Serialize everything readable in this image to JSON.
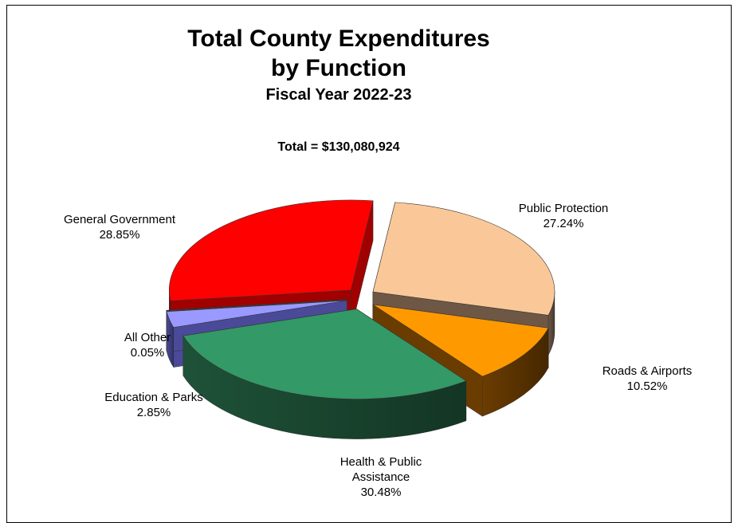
{
  "chart_data": {
    "type": "pie",
    "title": "Total County Expenditures",
    "title_line2": "by Function",
    "subtitle": "Fiscal Year 2022-23",
    "total_label": "Total = $130,080,924",
    "three_d": true,
    "exploded": true,
    "slices": [
      {
        "name": "Public Protection",
        "value": 27.24,
        "value_label": "27.24%",
        "color": "#FAC898",
        "side": "#6E5744"
      },
      {
        "name": "Roads & Airports",
        "value": 10.52,
        "value_label": "10.52%",
        "color": "#FF9900",
        "side": "#6B3C00"
      },
      {
        "name": "Health & Public Assistance",
        "name_lines": [
          "Health & Public",
          "Assistance"
        ],
        "value": 30.48,
        "value_label": "30.48%",
        "color": "#339966",
        "side": "#1E5238"
      },
      {
        "name": "Education & Parks",
        "value": 2.85,
        "value_label": "2.85%",
        "color": "#9999FF",
        "side": "#4A4A99"
      },
      {
        "name": "All Other",
        "value": 0.05,
        "value_label": "0.05%",
        "color": "#7F7F7F",
        "side": "#404040"
      },
      {
        "name": "General Government",
        "value": 28.85,
        "value_label": "28.85%",
        "color": "#FF0000",
        "side": "#A00000"
      }
    ]
  }
}
